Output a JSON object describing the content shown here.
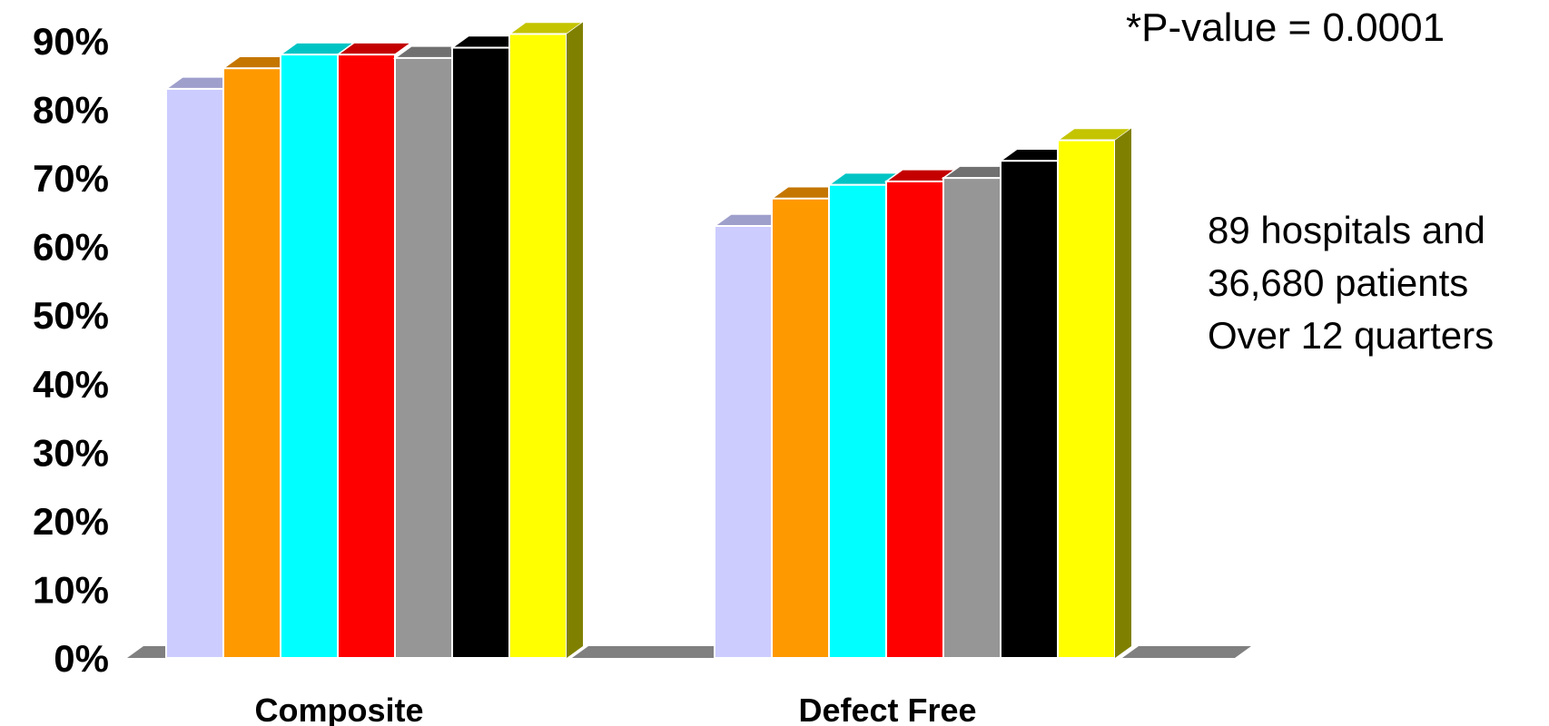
{
  "chart_data": {
    "type": "bar",
    "style": "3d-clustered",
    "categories": [
      "Composite",
      "Defect Free"
    ],
    "series": [
      {
        "values": [
          83,
          63
        ],
        "color": "#CCCCFF",
        "top_color": "#9F9FCC"
      },
      {
        "values": [
          86,
          67
        ],
        "color": "#FF9900",
        "top_color": "#C47600"
      },
      {
        "values": [
          88,
          69
        ],
        "color": "#00FFFF",
        "top_color": "#00C4C4"
      },
      {
        "values": [
          88,
          69.5
        ],
        "color": "#FF0000",
        "top_color": "#C40000"
      },
      {
        "values": [
          87.5,
          70
        ],
        "color": "#969696",
        "top_color": "#707070"
      },
      {
        "values": [
          89,
          72.5
        ],
        "color": "#000000",
        "top_color": "#000000"
      },
      {
        "values": [
          91,
          75.5
        ],
        "color": "#FFFF00",
        "top_color": "#C4C400"
      }
    ],
    "y_ticks": [
      "0%",
      "10%",
      "20%",
      "30%",
      "40%",
      "50%",
      "60%",
      "70%",
      "80%",
      "90%"
    ],
    "ylim": [
      0,
      90
    ],
    "floor_color": "#808080",
    "side_color": "#808000",
    "legend": "none",
    "grid": false
  },
  "annotations": {
    "p_value": "*P-value = 0.0001",
    "note_lines": [
      "89 hospitals and",
      "36,680 patients",
      "Over 12 quarters"
    ]
  }
}
